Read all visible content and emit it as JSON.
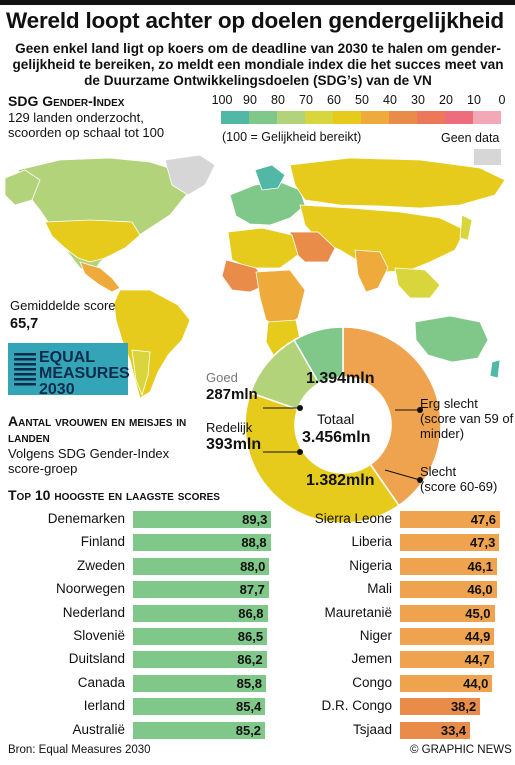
{
  "title": "Wereld loopt achter op doelen gendergelijkheid",
  "subtitle": "Geen enkel land ligt op koers om de deadline van 2030 te halen om gender-gelijkheid te bereiken, zo meldt een mondiale index die het succes meet van de Duurzame Ontwikkelingsdoelen (SDG’s) van de VN",
  "index": {
    "title": "SDG Gender-Index",
    "desc": "129 landen onderzocht, scoorden op schaal tot 100",
    "scale_labels": [
      "100",
      "90",
      "80",
      "70",
      "60",
      "50",
      "40",
      "30",
      "20",
      "10",
      "0"
    ],
    "scale_colors": [
      "#52b8a6",
      "#7fc88a",
      "#b2d37a",
      "#d8d63c",
      "#e6cb1c",
      "#efaa3c",
      "#e98c4a",
      "#ec7759",
      "#ee6d7c",
      "#f2a9b5"
    ],
    "equality_note": "(100 = Gelijkheid bereikt)",
    "nodata_label": "Geen data",
    "nodata_color": "#d6d6d6"
  },
  "average": {
    "label": "Gemiddelde score",
    "value": "65,7"
  },
  "logo": {
    "line1": "EQUAL",
    "line2": "MEASURES",
    "line3": "2030",
    "bg": "#33a5b7"
  },
  "counts": {
    "title": "Aantal vrouwen en meisjes in landen",
    "desc": "Volgens SDG Gender-Index score-groep",
    "total_label": "Totaal",
    "total_value": "3.456mln",
    "segments": [
      {
        "name": "Erg slecht",
        "value_text": "1.394mln",
        "value": 1394,
        "color": "#f0a34e",
        "label": "Erg slecht",
        "sublabel": "(score van 59 of minder)"
      },
      {
        "name": "Slecht",
        "value_text": "1.382mln",
        "value": 1382,
        "color": "#e6cb1c",
        "label": "Slecht",
        "sublabel": "(score 60-69)"
      },
      {
        "name": "Redelijk",
        "value_text": "393mln",
        "value": 393,
        "color": "#b2d37a",
        "label": "Redelijk"
      },
      {
        "name": "Goed",
        "value_text": "287mln",
        "value": 287,
        "color": "#7fc88a",
        "label": "Goed"
      }
    ]
  },
  "top10": {
    "title": "Top 10 hoogste en laagste scores",
    "highest_color": "#7fc88a",
    "lowest_color": "#f0a34e",
    "lowest_color_dark": "#e98c4a",
    "highest": [
      {
        "name": "Denemarken",
        "score": "89,3",
        "value": 89.3
      },
      {
        "name": "Finland",
        "score": "88,8",
        "value": 88.8
      },
      {
        "name": "Zweden",
        "score": "88,0",
        "value": 88.0
      },
      {
        "name": "Noorwegen",
        "score": "87,7",
        "value": 87.7
      },
      {
        "name": "Nederland",
        "score": "86,8",
        "value": 86.8
      },
      {
        "name": "Slovenië",
        "score": "86,5",
        "value": 86.5
      },
      {
        "name": "Duitsland",
        "score": "86,2",
        "value": 86.2
      },
      {
        "name": "Canada",
        "score": "85,8",
        "value": 85.8
      },
      {
        "name": "Ierland",
        "score": "85,4",
        "value": 85.4
      },
      {
        "name": "Australië",
        "score": "85,2",
        "value": 85.2
      }
    ],
    "lowest": [
      {
        "name": "Sierra Leone",
        "score": "47,6",
        "value": 47.6
      },
      {
        "name": "Liberia",
        "score": "47,3",
        "value": 47.3
      },
      {
        "name": "Nigeria",
        "score": "46,1",
        "value": 46.1
      },
      {
        "name": "Mali",
        "score": "46,0",
        "value": 46.0
      },
      {
        "name": "Mauretanië",
        "score": "45,0",
        "value": 45.0
      },
      {
        "name": "Niger",
        "score": "44,9",
        "value": 44.9
      },
      {
        "name": "Jemen",
        "score": "44,7",
        "value": 44.7
      },
      {
        "name": "Congo",
        "score": "44,0",
        "value": 44.0
      },
      {
        "name": "D.R. Congo",
        "score": "38,2",
        "value": 38.2
      },
      {
        "name": "Tsjaad",
        "score": "33,4",
        "value": 33.4
      }
    ]
  },
  "source": "Bron: Equal Measures 2030",
  "credit": "© GRAPHIC NEWS"
}
